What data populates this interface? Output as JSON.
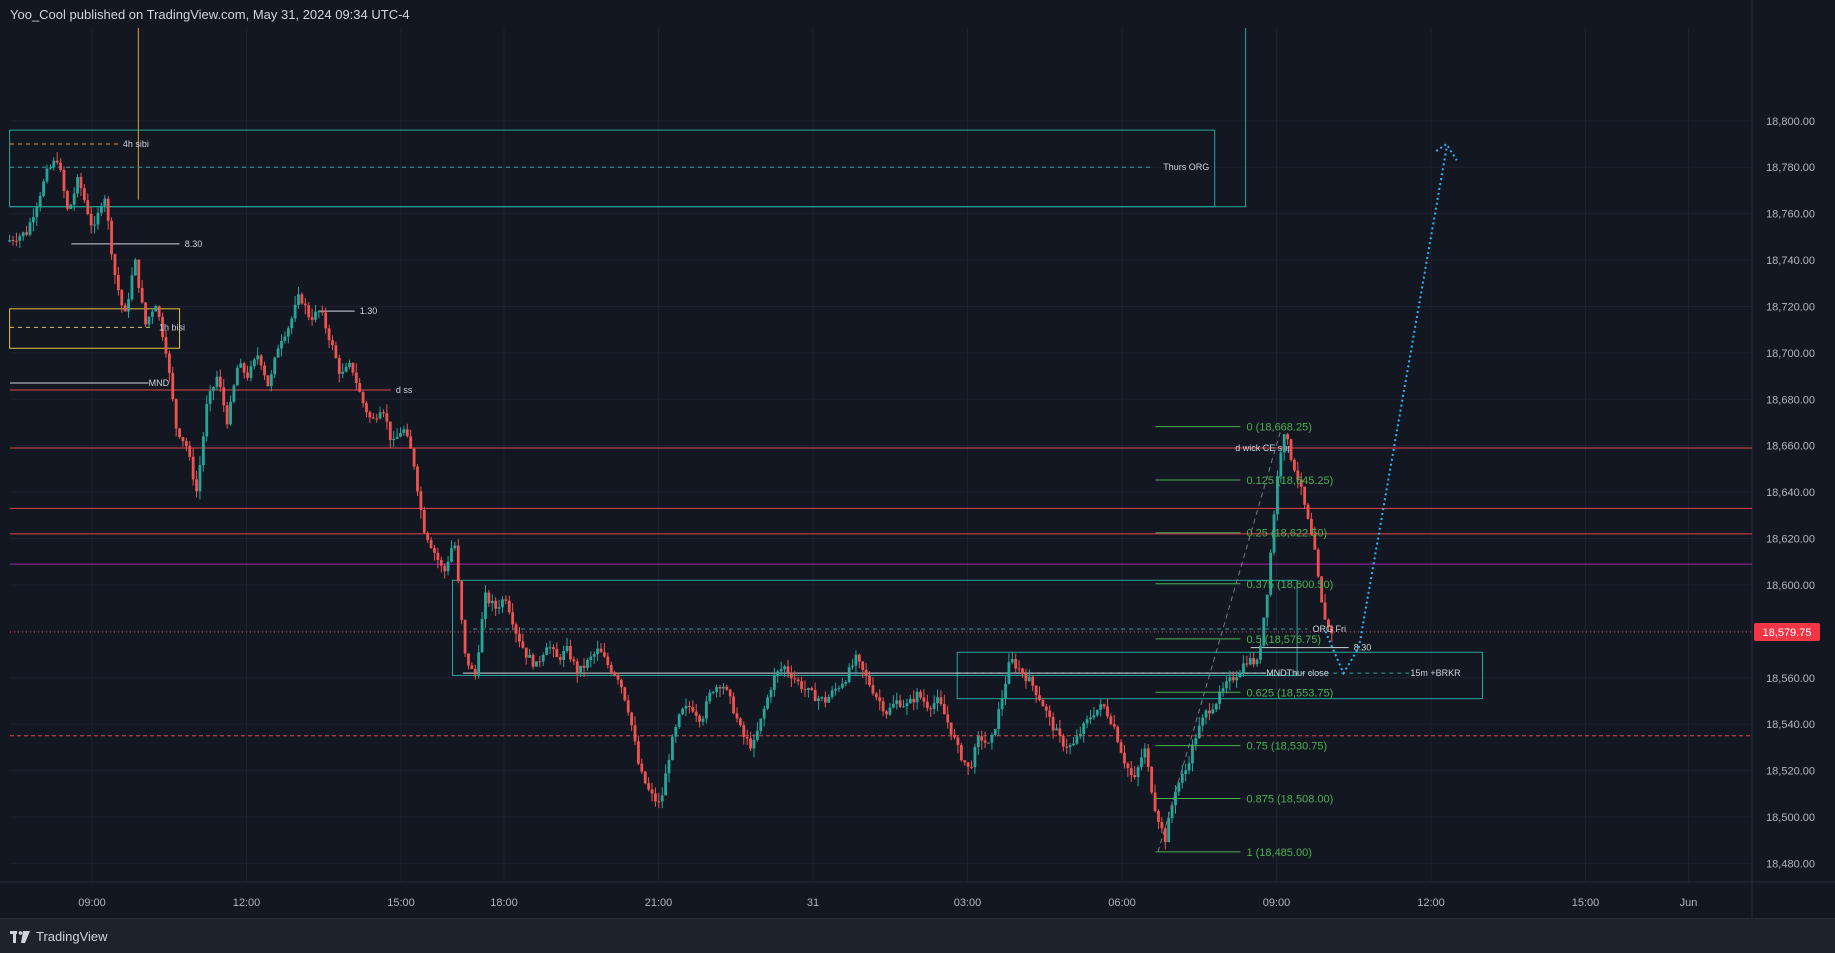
{
  "header": {
    "published_text": "Yoo_Cool published on TradingView.com, May 31, 2024 09:34 UTC-4"
  },
  "footer": {
    "brand": "TradingView"
  },
  "colors": {
    "background": "#131722",
    "up": "#26a69a",
    "down": "#ef5350",
    "grid": "#1e2230",
    "fib": "#4caf50",
    "zone": "#26a69a",
    "yellow_zone": "#e0c43a",
    "red_line": "#e0454f",
    "purple_line": "#9c27b0",
    "projection": "#29b6f6",
    "price_badge": "#f23645"
  },
  "chart_data": {
    "type": "candlestick",
    "symbol_timeframe_note": "",
    "y_axis": {
      "range": [
        18472,
        18840
      ],
      "ticks": [
        18480,
        18500,
        18520,
        18540,
        18560,
        18580,
        18600,
        18620,
        18640,
        18660,
        18680,
        18700,
        18720,
        18740,
        18760,
        18780,
        18800
      ],
      "tick_labels": [
        "18,480.00",
        "18,500.00",
        "18,520.00",
        "18,540.00",
        "18,560.00",
        "18,580.00",
        "18,600.00",
        "18,620.00",
        "18,640.00",
        "18,660.00",
        "18,680.00",
        "18,700.00",
        "18,720.00",
        "18,740.00",
        "18,760.00",
        "18,780.00",
        "18,800.00"
      ]
    },
    "x_axis": {
      "ticks": [
        {
          "label": "09:00",
          "t": 0
        },
        {
          "label": "12:00",
          "t": 3
        },
        {
          "label": "15:00",
          "t": 6
        },
        {
          "label": "18:00",
          "t": 8
        },
        {
          "label": "21:00",
          "t": 11
        },
        {
          "label": "31",
          "t": 14
        },
        {
          "label": "03:00",
          "t": 17
        },
        {
          "label": "06:00",
          "t": 20
        },
        {
          "label": "09:00",
          "t": 23
        },
        {
          "label": "12:00",
          "t": 26
        },
        {
          "label": "15:00",
          "t": 29
        },
        {
          "label": "Jun",
          "t": 31
        }
      ]
    },
    "last_price": {
      "value": 18579.75,
      "label": "18,579.75"
    },
    "candle_path": [
      [
        -1.6,
        18748
      ],
      [
        -1.2,
        18752
      ],
      [
        -0.8,
        18778
      ],
      [
        -0.6,
        18784
      ],
      [
        -0.4,
        18760
      ],
      [
        -0.2,
        18775
      ],
      [
        0.1,
        18752
      ],
      [
        0.3,
        18770
      ],
      [
        0.5,
        18735
      ],
      [
        0.7,
        18715
      ],
      [
        0.9,
        18740
      ],
      [
        1.1,
        18712
      ],
      [
        1.3,
        18722
      ],
      [
        1.5,
        18702
      ],
      [
        1.7,
        18668
      ],
      [
        1.9,
        18660
      ],
      [
        2.1,
        18640
      ],
      [
        2.3,
        18678
      ],
      [
        2.5,
        18690
      ],
      [
        2.7,
        18670
      ],
      [
        2.9,
        18695
      ],
      [
        3.1,
        18690
      ],
      [
        3.3,
        18700
      ],
      [
        3.5,
        18685
      ],
      [
        3.7,
        18705
      ],
      [
        3.9,
        18712
      ],
      [
        4.1,
        18725
      ],
      [
        4.3,
        18715
      ],
      [
        4.5,
        18718
      ],
      [
        4.7,
        18705
      ],
      [
        4.9,
        18690
      ],
      [
        5.1,
        18695
      ],
      [
        5.3,
        18680
      ],
      [
        5.5,
        18670
      ],
      [
        5.7,
        18678
      ],
      [
        5.9,
        18660
      ],
      [
        6.1,
        18668
      ],
      [
        6.3,
        18655
      ],
      [
        6.5,
        18625
      ],
      [
        6.7,
        18615
      ],
      [
        6.9,
        18605
      ],
      [
        7.1,
        18620
      ],
      [
        7.3,
        18570
      ],
      [
        7.5,
        18560
      ],
      [
        7.7,
        18595
      ],
      [
        7.9,
        18590
      ],
      [
        8.1,
        18595
      ],
      [
        8.3,
        18580
      ],
      [
        8.5,
        18570
      ],
      [
        8.7,
        18565
      ],
      [
        8.9,
        18575
      ],
      [
        9.1,
        18568
      ],
      [
        9.3,
        18572
      ],
      [
        9.5,
        18562
      ],
      [
        9.7,
        18567
      ],
      [
        9.9,
        18572
      ],
      [
        10.1,
        18565
      ],
      [
        10.3,
        18560
      ],
      [
        10.5,
        18545
      ],
      [
        10.7,
        18520
      ],
      [
        10.9,
        18510
      ],
      [
        11.1,
        18505
      ],
      [
        11.3,
        18530
      ],
      [
        11.5,
        18545
      ],
      [
        11.7,
        18548
      ],
      [
        11.9,
        18542
      ],
      [
        12.1,
        18555
      ],
      [
        12.3,
        18558
      ],
      [
        12.5,
        18548
      ],
      [
        12.7,
        18535
      ],
      [
        12.9,
        18530
      ],
      [
        13.1,
        18545
      ],
      [
        13.3,
        18560
      ],
      [
        13.5,
        18565
      ],
      [
        13.7,
        18560
      ],
      [
        13.9,
        18555
      ],
      [
        14.1,
        18552
      ],
      [
        14.3,
        18550
      ],
      [
        14.5,
        18555
      ],
      [
        14.7,
        18560
      ],
      [
        14.9,
        18568
      ],
      [
        15.1,
        18560
      ],
      [
        15.3,
        18552
      ],
      [
        15.5,
        18545
      ],
      [
        15.7,
        18550
      ],
      [
        15.9,
        18548
      ],
      [
        16.1,
        18553
      ],
      [
        16.3,
        18548
      ],
      [
        16.5,
        18550
      ],
      [
        16.7,
        18540
      ],
      [
        16.9,
        18528
      ],
      [
        17.1,
        18520
      ],
      [
        17.3,
        18535
      ],
      [
        17.5,
        18530
      ],
      [
        17.7,
        18548
      ],
      [
        17.9,
        18568
      ],
      [
        18.1,
        18563
      ],
      [
        18.3,
        18558
      ],
      [
        18.5,
        18550
      ],
      [
        18.7,
        18540
      ],
      [
        18.9,
        18532
      ],
      [
        19.1,
        18530
      ],
      [
        19.3,
        18538
      ],
      [
        19.5,
        18545
      ],
      [
        19.7,
        18548
      ],
      [
        19.9,
        18540
      ],
      [
        20.1,
        18525
      ],
      [
        20.3,
        18515
      ],
      [
        20.5,
        18530
      ],
      [
        20.7,
        18505
      ],
      [
        20.9,
        18490
      ],
      [
        21.1,
        18512
      ],
      [
        21.3,
        18520
      ],
      [
        21.5,
        18535
      ],
      [
        21.7,
        18545
      ],
      [
        21.9,
        18550
      ],
      [
        22.1,
        18557
      ],
      [
        22.3,
        18562
      ],
      [
        22.5,
        18568
      ],
      [
        22.7,
        18566
      ],
      [
        22.9,
        18600
      ],
      [
        23.05,
        18640
      ],
      [
        23.2,
        18668
      ],
      [
        23.35,
        18655
      ],
      [
        23.5,
        18645
      ],
      [
        23.65,
        18630
      ],
      [
        23.8,
        18615
      ],
      [
        23.95,
        18590
      ],
      [
        24.1,
        18580
      ]
    ],
    "horizontal_lines": [
      {
        "price": 18659,
        "color": "#e0454f",
        "label": "d wick CE sup"
      },
      {
        "price": 18633,
        "color": "#e0454f",
        "label": ""
      },
      {
        "price": 18622,
        "color": "#e0454f",
        "label": ""
      },
      {
        "price": 18609,
        "color": "#9c27b0",
        "label": ""
      },
      {
        "price": 18535,
        "color": "#e0454f",
        "label": "",
        "dashed": true
      },
      {
        "price": 18684,
        "color": "#e0454f",
        "label": "d ss"
      }
    ],
    "fib_levels": [
      {
        "ratio": "0",
        "price": 18668.25,
        "label": "0 (18,668.25)"
      },
      {
        "ratio": "0.125",
        "price": 18645.25,
        "label": "0.125 (18,645.25)"
      },
      {
        "ratio": "0.25",
        "price": 18622.5,
        "label": "0.25 (18,622.50)"
      },
      {
        "ratio": "0.375",
        "price": 18600.5,
        "label": "0.375 (18,600.50)"
      },
      {
        "ratio": "0.5",
        "price": 18576.75,
        "label": "0.5 (18,576.75)"
      },
      {
        "ratio": "0.625",
        "price": 18553.75,
        "label": "0.625 (18,553.75)"
      },
      {
        "ratio": "0.75",
        "price": 18530.75,
        "label": "0.75 (18,530.75)"
      },
      {
        "ratio": "0.875",
        "price": 18508.0,
        "label": "0.875 (18,508.00)"
      },
      {
        "ratio": "1",
        "price": 18485.0,
        "label": "1 (18,485.00)"
      }
    ],
    "annotations": [
      {
        "text": "4h sibi"
      },
      {
        "text": "Thurs ORG"
      },
      {
        "text": "8.30"
      },
      {
        "text": "1h bisi"
      },
      {
        "text": "1.30"
      },
      {
        "text": "MND"
      },
      {
        "text": "ORG Fri"
      },
      {
        "text": "8.30"
      },
      {
        "text": "MNDThur close"
      },
      {
        "text": "15m +BRKR"
      }
    ]
  }
}
